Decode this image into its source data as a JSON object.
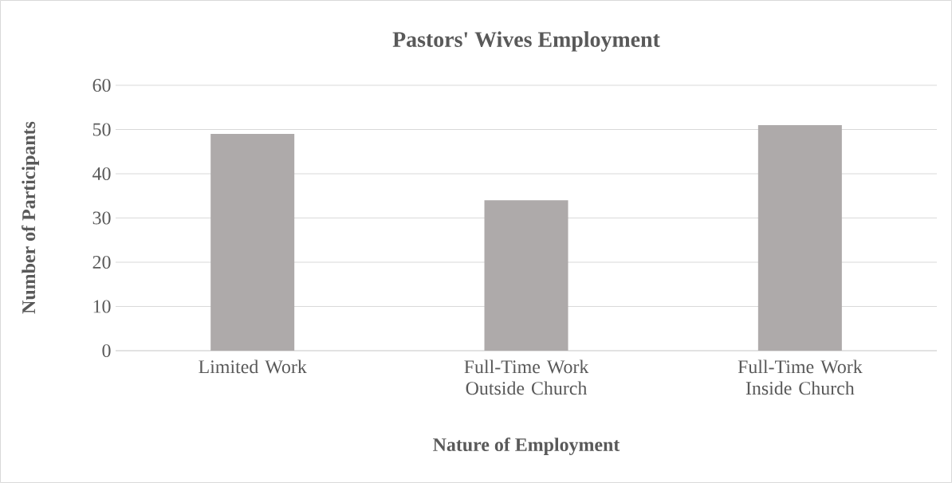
{
  "chart_data": {
    "type": "bar",
    "title": "Pastors' Wives Employment",
    "xlabel": "Nature of Employment",
    "ylabel": "Number of Participants",
    "categories": [
      "Limited Work",
      "Full-Time Work Outside Church",
      "Full-Time Work Inside Church"
    ],
    "values": [
      49,
      34,
      51
    ],
    "color": "#aeaaaa",
    "ylim": [
      0,
      60
    ],
    "yticks": [
      0,
      10,
      20,
      30,
      40,
      50,
      60
    ],
    "grid": "y"
  }
}
